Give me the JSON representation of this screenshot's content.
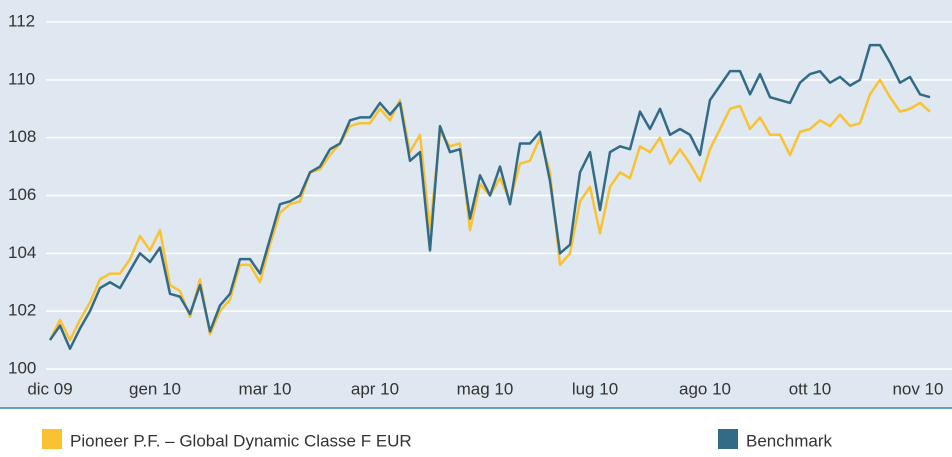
{
  "chart_data": {
    "type": "line",
    "series": [
      {
        "name": "Pioneer P.F. – Global Dynamic Classe F EUR",
        "color": "#f9c232",
        "values": [
          101.0,
          101.7,
          101.0,
          101.7,
          102.3,
          103.1,
          103.3,
          103.3,
          103.8,
          104.6,
          104.1,
          104.8,
          102.9,
          102.7,
          101.8,
          103.1,
          101.2,
          102.0,
          102.4,
          103.6,
          103.6,
          103.0,
          104.3,
          105.4,
          105.7,
          105.8,
          106.8,
          106.9,
          107.4,
          107.8,
          108.4,
          108.5,
          108.5,
          109.0,
          108.6,
          109.3,
          107.5,
          108.1,
          104.8,
          108.2,
          107.7,
          107.8,
          104.8,
          106.4,
          106.0,
          106.6,
          105.8,
          107.1,
          107.2,
          108.0,
          106.8,
          103.6,
          104.0,
          105.8,
          106.3,
          104.7,
          106.3,
          106.8,
          106.6,
          107.7,
          107.5,
          108.0,
          107.1,
          107.6,
          107.1,
          106.5,
          107.6,
          108.3,
          109.0,
          109.1,
          108.3,
          108.7,
          108.1,
          108.1,
          107.4,
          108.2,
          108.3,
          108.6,
          108.4,
          108.8,
          108.4,
          108.5,
          109.5,
          110.0,
          109.4,
          108.9,
          109.0,
          109.2,
          108.9
        ]
      },
      {
        "name": "Benchmark",
        "color": "#336b87",
        "values": [
          101.0,
          101.5,
          100.7,
          101.4,
          102.0,
          102.8,
          103.0,
          102.8,
          103.4,
          104.0,
          103.7,
          104.2,
          102.6,
          102.5,
          101.9,
          102.9,
          101.3,
          102.2,
          102.6,
          103.8,
          103.8,
          103.3,
          104.5,
          105.7,
          105.8,
          106.0,
          106.8,
          107.0,
          107.6,
          107.8,
          108.6,
          108.7,
          108.7,
          109.2,
          108.8,
          109.2,
          107.2,
          107.5,
          104.1,
          108.4,
          107.5,
          107.6,
          105.2,
          106.7,
          106.0,
          107.0,
          105.7,
          107.8,
          107.8,
          108.2,
          106.5,
          104.0,
          104.3,
          106.8,
          107.5,
          105.5,
          107.5,
          107.7,
          107.6,
          108.9,
          108.3,
          109.0,
          108.1,
          108.3,
          108.1,
          107.4,
          109.3,
          109.8,
          110.3,
          110.3,
          109.5,
          110.2,
          109.4,
          109.3,
          109.2,
          109.9,
          110.2,
          110.3,
          109.9,
          110.1,
          109.8,
          110.0,
          111.2,
          111.2,
          110.6,
          109.9,
          110.1,
          109.5,
          109.4
        ]
      }
    ],
    "xlim": [
      0,
      88
    ],
    "xticks": [
      {
        "value": 0,
        "label": "dic 09"
      },
      {
        "value": 10.5,
        "label": "gen 10"
      },
      {
        "value": 21.5,
        "label": "mar 10"
      },
      {
        "value": 32.5,
        "label": "apr 10"
      },
      {
        "value": 43.5,
        "label": "mag 10"
      },
      {
        "value": 54.5,
        "label": "lug 10"
      },
      {
        "value": 65.5,
        "label": "ago 10"
      },
      {
        "value": 76,
        "label": "ott 10"
      },
      {
        "value": 87,
        "label": "nov 10"
      }
    ],
    "ylim": [
      100,
      112
    ],
    "yticks": [
      100,
      102,
      104,
      106,
      108,
      110,
      112
    ],
    "grid": true
  }
}
